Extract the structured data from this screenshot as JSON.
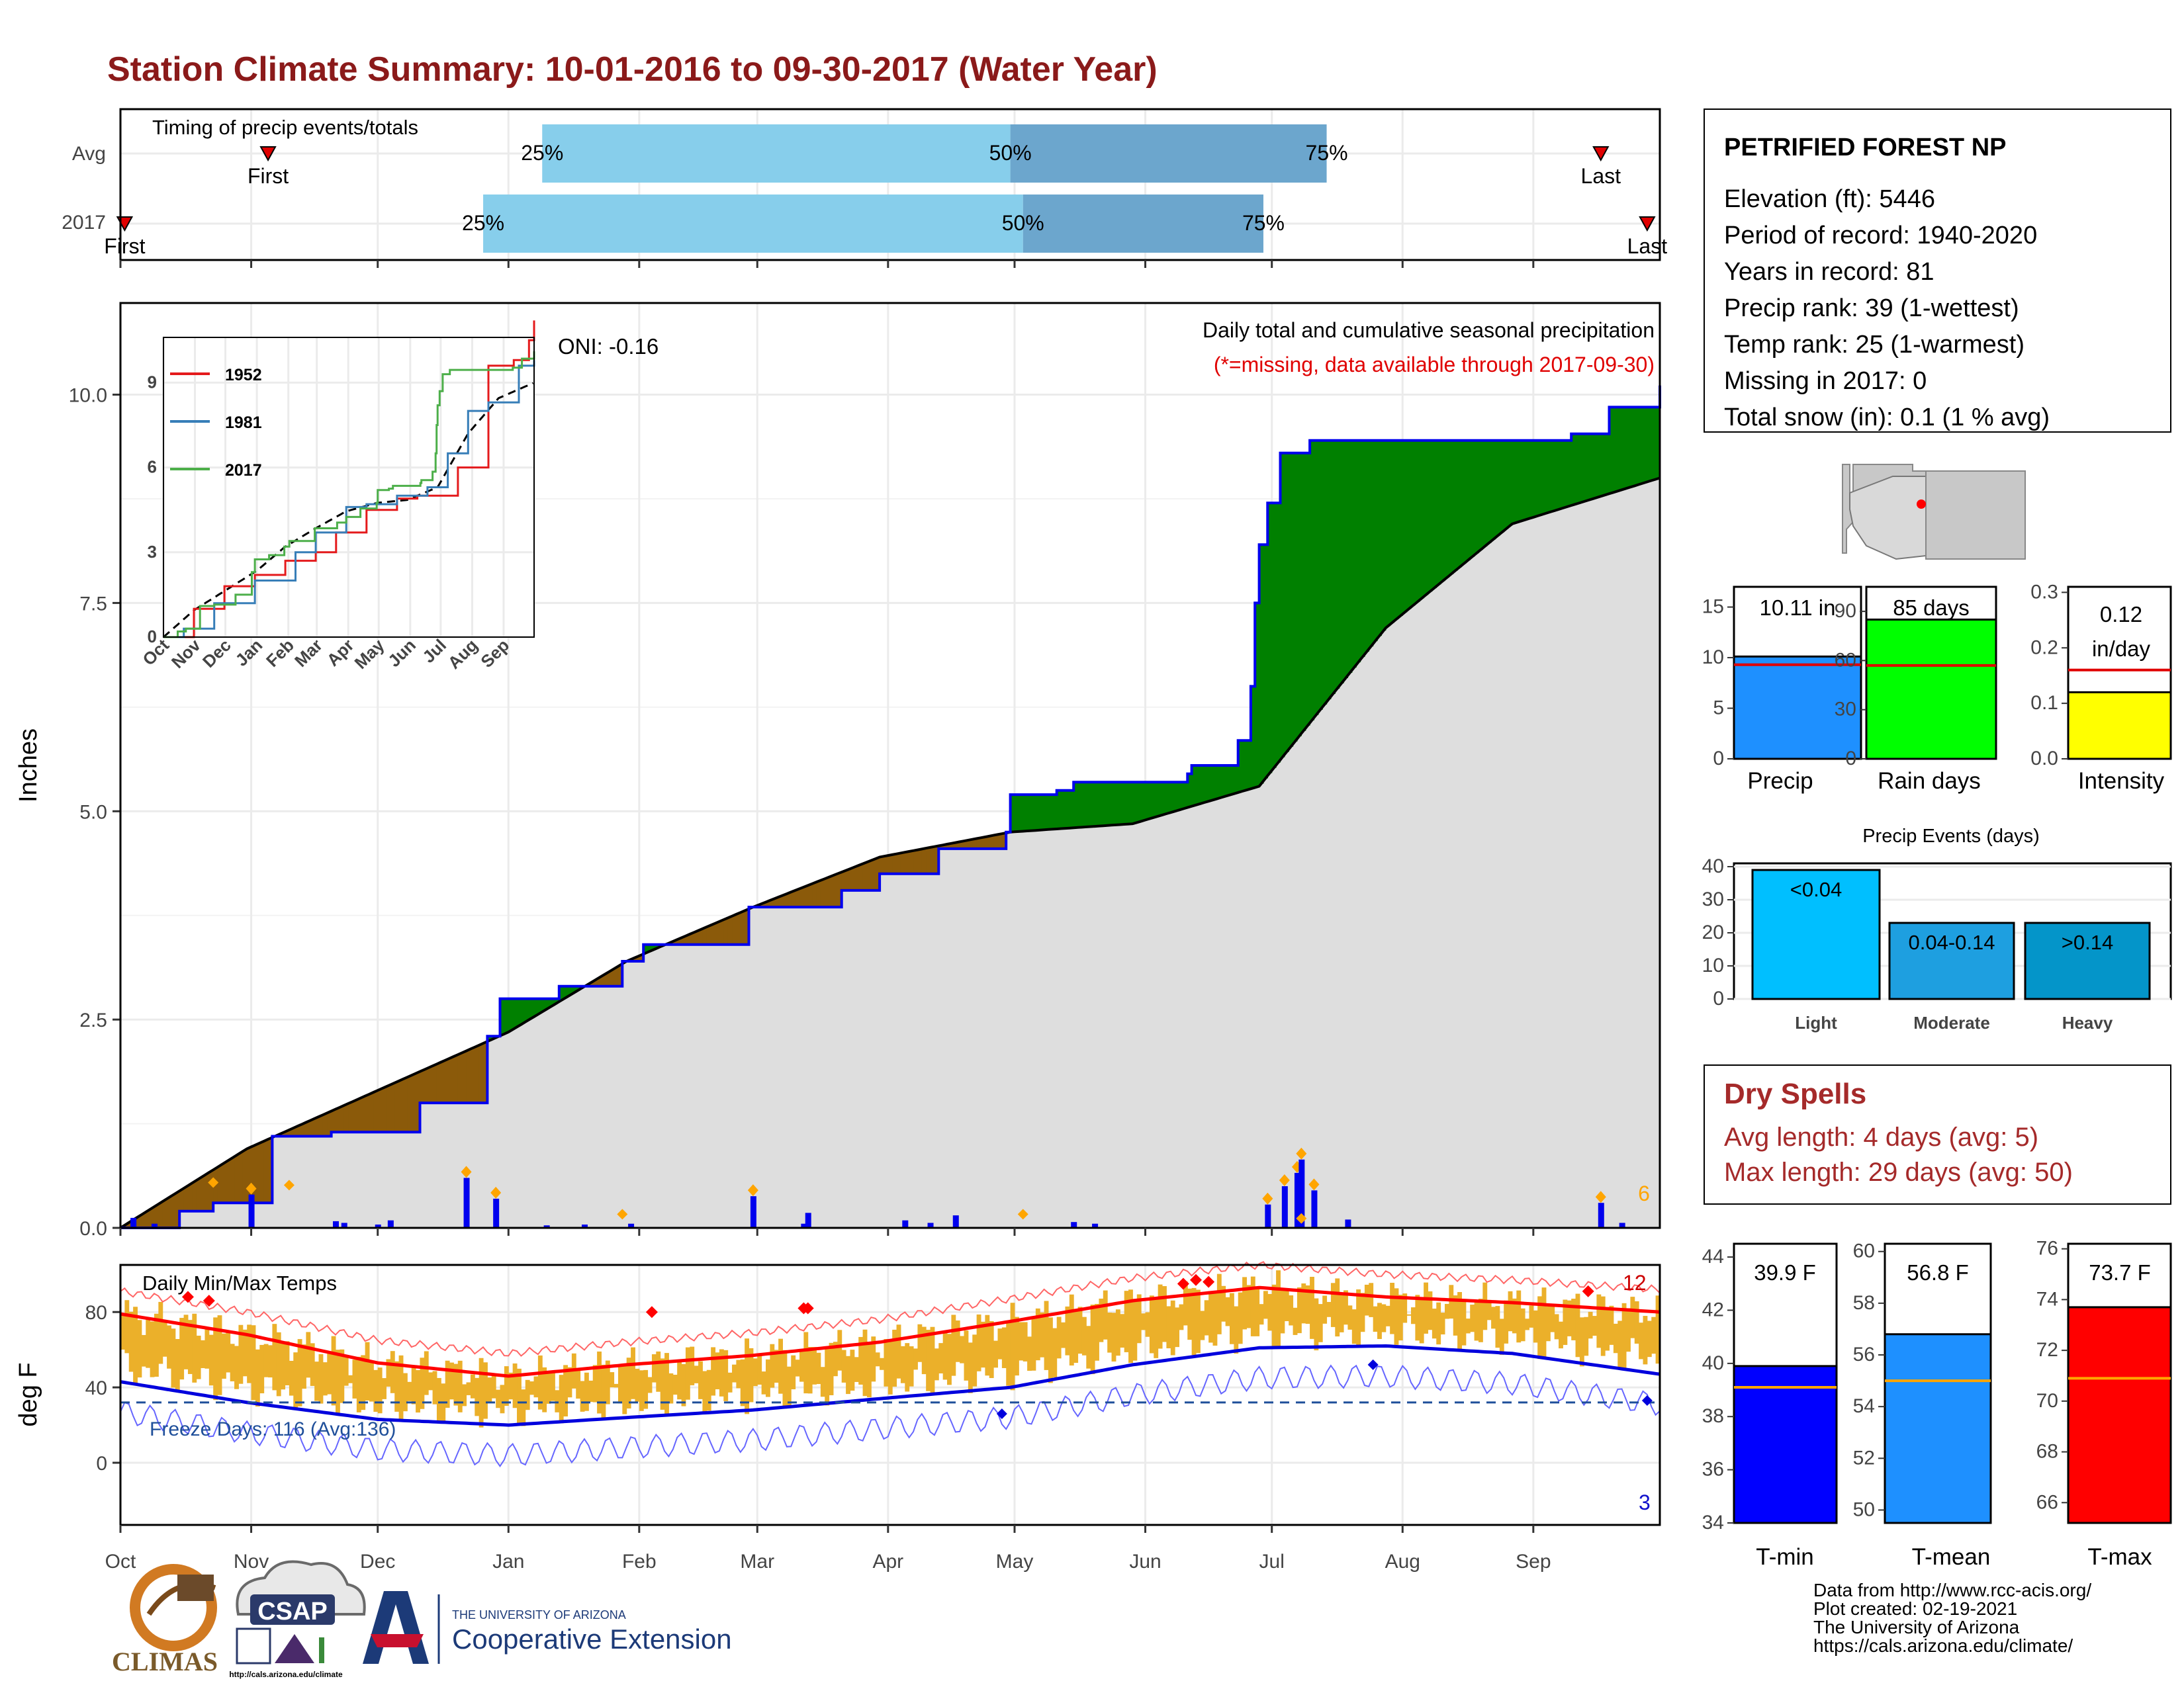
{
  "title": "Station Climate Summary: 10-01-2016 to 09-30-2017 (Water Year)",
  "timing": {
    "label": "Timing of precip events/totals",
    "rows": [
      {
        "name": "Avg",
        "first_label": "First",
        "last_label": "Last",
        "first_day": 35,
        "last_day": 351,
        "p25": 100,
        "p50": 211,
        "p75": 286
      },
      {
        "name": "2017",
        "first_label": "First",
        "last_label": "Last",
        "first_day": 1,
        "last_day": 362,
        "p25": 86,
        "p50": 214,
        "p75": 271
      }
    ],
    "pct_labels": [
      "25%",
      "50%",
      "75%"
    ]
  },
  "precip_panel": {
    "ylabel": "Inches",
    "yticks": [
      "0.0",
      "2.5",
      "5.0",
      "7.5",
      "10.0"
    ],
    "ylim": [
      0,
      11.1
    ],
    "header": "Daily total and cumulative seasonal precipitation",
    "note": "(*=missing, data available through 2017-09-30)",
    "oni": "ONI: -0.16",
    "end_count": "6"
  },
  "inset": {
    "yticks": [
      "0",
      "3",
      "6",
      "9"
    ],
    "months": [
      "Oct",
      "Nov",
      "Dec",
      "Jan",
      "Feb",
      "Mar",
      "Apr",
      "May",
      "Jun",
      "Jul",
      "Aug",
      "Sep"
    ],
    "legend": [
      {
        "name": "1952",
        "color": "#e41a1c"
      },
      {
        "name": "1981",
        "color": "#377eb8"
      },
      {
        "name": "2017",
        "color": "#4daf4a"
      }
    ]
  },
  "temp_panel": {
    "ylabel": "deg F",
    "yticks": [
      "0",
      "40",
      "80"
    ],
    "label": "Daily Min/Max Temps",
    "freeze": "Freeze Days: 116 (Avg:136)",
    "hot_count": "12",
    "cold_count": "3"
  },
  "months": [
    "Oct",
    "Nov",
    "Dec",
    "Jan",
    "Feb",
    "Mar",
    "Apr",
    "May",
    "Jun",
    "Jul",
    "Aug",
    "Sep"
  ],
  "station": {
    "name": "PETRIFIED FOREST NP",
    "lines": [
      "Elevation (ft): 5446",
      "Period of record: 1940-2020",
      "Years in record: 81",
      "Precip rank: 39 (1-wettest)",
      "Temp rank: 25 (1-warmest)",
      "Missing in 2017: 0",
      "Total snow (in): 0.1 (1 % avg)"
    ]
  },
  "precip_bars": [
    {
      "label": "Precip",
      "value_text": "10.11 in",
      "value": 10.11,
      "avg": 9.3,
      "max": 17,
      "ticks": [
        "0",
        "5",
        "10",
        "15"
      ],
      "color": "#1E90FF"
    },
    {
      "label": "Rain days",
      "value_text": "85 days",
      "value": 85,
      "avg": 57,
      "max": 105,
      "ticks": [
        "0",
        "30",
        "60",
        "90"
      ],
      "color": "#00FF00"
    },
    {
      "label": "Intensity",
      "value_text": "0.12 in/day",
      "value": 0.12,
      "avg": 0.16,
      "max": 0.31,
      "ticks": [
        "0.0",
        "0.1",
        "0.2",
        "0.3"
      ],
      "color": "#FFFF00"
    }
  ],
  "events": {
    "title": "Precip Events (days)",
    "yticks": [
      "0",
      "10",
      "20",
      "30",
      "40"
    ],
    "bars": [
      {
        "label": "Light",
        "value_label": "<0.04",
        "value": 39,
        "color": "#00BFFF"
      },
      {
        "label": "Moderate",
        "value_label": "0.04-0.14",
        "value": 23,
        "color": "#1E9FE0"
      },
      {
        "label": "Heavy",
        "value_label": ">0.14",
        "value": 23,
        "color": "#0495C9"
      }
    ]
  },
  "dry_spells": {
    "title": "Dry Spells",
    "line1": "Avg length: 4 days (avg: 5)",
    "line2": "Max length: 29 days (avg: 50)"
  },
  "temp_bars": [
    {
      "label": "T-min",
      "value_text": "39.9 F",
      "value": 39.9,
      "avg": 39.1,
      "min": 34,
      "max": 44.5,
      "ticks": [
        "34",
        "36",
        "38",
        "40",
        "42",
        "44"
      ],
      "color": "#0000FF"
    },
    {
      "label": "T-mean",
      "value_text": "56.8 F",
      "value": 56.8,
      "avg": 55.0,
      "min": 49.5,
      "max": 60.3,
      "ticks": [
        "50",
        "52",
        "54",
        "56",
        "58",
        "60"
      ],
      "color": "#1E90FF"
    },
    {
      "label": "T-max",
      "value_text": "73.7 F",
      "value": 73.7,
      "avg": 70.9,
      "min": 65.2,
      "max": 76.2,
      "ticks": [
        "66",
        "68",
        "70",
        "72",
        "74",
        "76"
      ],
      "color": "#FF0000"
    }
  ],
  "footer": {
    "lines": [
      "Data from http://www.rcc-acis.org/",
      "Plot created: 02-19-2021",
      "The University of Arizona",
      "https://cals.arizona.edu/climate/"
    ]
  },
  "logos": {
    "climas": "CLIMAS",
    "csap": "CSAP",
    "csap_url": "http://cals.arizona.edu/climate",
    "ua_small": "THE UNIVERSITY OF ARIZONA",
    "ua_big": "Cooperative Extension"
  },
  "chart_data": {
    "type": "area",
    "title": "Daily total and cumulative seasonal precipitation",
    "xlabel": "",
    "ylabel": "Inches",
    "ylim": [
      0,
      11.1
    ],
    "categories": [
      "Oct",
      "Nov",
      "Dec",
      "Jan",
      "Feb",
      "Mar",
      "Apr",
      "May",
      "Jun",
      "Jul",
      "Aug",
      "Sep"
    ],
    "series": [
      {
        "name": "2017",
        "x": [
          0,
          14,
          22,
          34,
          36,
          50,
          71,
          79,
          87,
          90,
          104,
          119,
          124,
          149,
          171,
          180,
          194,
          210,
          211,
          222,
          226,
          232,
          253,
          254,
          265,
          268,
          269,
          270,
          272,
          275,
          282,
          344,
          353,
          365
        ],
        "values": [
          0.0,
          0.2,
          0.3,
          0.3,
          1.1,
          1.15,
          1.5,
          1.5,
          2.3,
          2.75,
          2.9,
          3.2,
          3.4,
          3.85,
          4.05,
          4.25,
          4.55,
          4.75,
          5.2,
          5.25,
          5.35,
          5.35,
          5.45,
          5.55,
          5.85,
          6.5,
          7.5,
          8.2,
          8.7,
          9.3,
          9.45,
          9.53,
          9.85,
          10.11
        ]
      },
      {
        "name": "Avg",
        "x": [
          0,
          30,
          61,
          92,
          120,
          150,
          180,
          211,
          240,
          270,
          300,
          330,
          365
        ],
        "values": [
          0.0,
          0.95,
          1.65,
          2.35,
          3.2,
          3.85,
          4.45,
          4.75,
          4.85,
          5.3,
          7.2,
          8.45,
          9.0
        ]
      }
    ],
    "daily_precip": {
      "x": [
        3,
        8,
        31,
        51,
        53,
        61,
        64,
        82,
        89,
        101,
        110,
        121,
        150,
        162,
        163,
        186,
        192,
        198,
        226,
        231,
        272,
        276,
        279,
        280,
        283,
        291,
        351,
        356
      ],
      "values": [
        0.12,
        0.05,
        0.4,
        0.08,
        0.06,
        0.04,
        0.09,
        0.6,
        0.35,
        0.03,
        0.04,
        0.05,
        0.38,
        0.05,
        0.18,
        0.09,
        0.06,
        0.15,
        0.07,
        0.05,
        0.28,
        0.5,
        0.66,
        0.82,
        0.45,
        0.1,
        0.3,
        0.06
      ]
    },
    "temperature": {
      "label": "Daily Min/Max Temps",
      "yticks": [
        0,
        40,
        80
      ],
      "avg_max_series": {
        "x": [
          0,
          30,
          61,
          92,
          120,
          150,
          180,
          211,
          240,
          270,
          300,
          330,
          365
        ],
        "values": [
          79,
          68,
          53,
          46,
          52,
          57,
          64,
          75,
          86,
          93,
          88,
          85,
          80
        ]
      },
      "avg_min_series": {
        "x": [
          0,
          30,
          61,
          92,
          120,
          150,
          180,
          211,
          240,
          270,
          300,
          330,
          365
        ],
        "values": [
          43,
          32,
          23,
          20,
          24,
          28,
          34,
          40,
          52,
          61,
          62,
          58,
          47
        ]
      }
    }
  }
}
